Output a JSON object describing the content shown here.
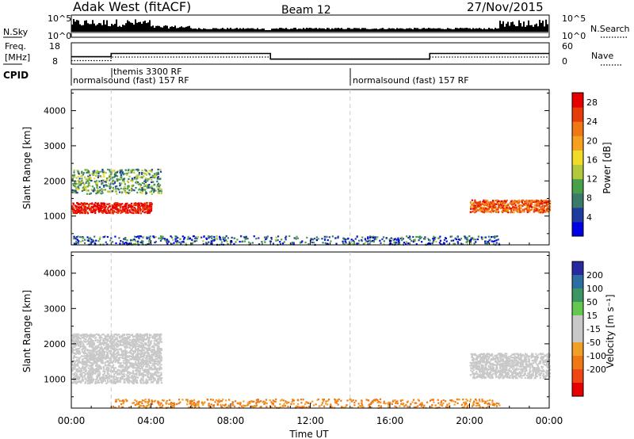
{
  "header": {
    "station": "Adak West (fitACF)",
    "beam": "Beam 12",
    "date": "27/Nov/2015"
  },
  "labels": {
    "nsky": "N.Sky",
    "nsearch": "N.Search",
    "freq_line1": "Freq.",
    "freq_line2": "[MHz]",
    "nave": "Nave",
    "cpid": "CPID",
    "slant_range": "Slant Range [km]",
    "time_axis": "Time UT",
    "power_label": "Power [dB]",
    "velocity_label": "Velocity [m s⁻¹]"
  },
  "noise_panel": {
    "left_ticks": [
      "10^5",
      "10^0"
    ],
    "right_ticks": [
      "10^5",
      "10^0"
    ]
  },
  "freq_panel": {
    "left_ticks": [
      "18",
      "8"
    ],
    "right_ticks": [
      "60",
      "0"
    ],
    "freq_segments": [
      {
        "start": 0.0,
        "end": 2.0,
        "value": 11.5
      },
      {
        "start": 2.0,
        "end": 10.0,
        "value": 13.0
      },
      {
        "start": 10.0,
        "end": 18.0,
        "value": 10.4
      },
      {
        "start": 18.0,
        "end": 24.0,
        "value": 13.0
      }
    ],
    "nave_segments": [
      {
        "start": 0.0,
        "end": 2.0,
        "value": 10
      },
      {
        "start": 2.0,
        "end": 10.0,
        "value": 20
      },
      {
        "start": 10.0,
        "end": 18.0,
        "value": 14
      },
      {
        "start": 18.0,
        "end": 24.0,
        "value": 20
      }
    ]
  },
  "cpid_panel": {
    "segments": [
      {
        "start": 0.0,
        "label": "normalsound (fast) 157 RF"
      },
      {
        "start": 2.0,
        "label": "themis 3300 RF"
      },
      {
        "start": 14.0,
        "label": "normalsound (fast) 157 RF"
      }
    ]
  },
  "colorbars": {
    "power": {
      "ticks": [
        "28",
        "24",
        "20",
        "16",
        "12",
        "8",
        "4"
      ],
      "colors": [
        "#0000e6",
        "#1e3ca0",
        "#3a7a6a",
        "#4aa04a",
        "#b4c83c",
        "#f0dc28",
        "#f5a01e",
        "#f07814",
        "#e63c0a",
        "#e60000"
      ]
    },
    "velocity": {
      "ticks": [
        "200",
        "100",
        "50",
        "15",
        "-15",
        "-50",
        "-100",
        "-200"
      ],
      "colors": [
        "#2828a0",
        "#2c6ea0",
        "#3c9664",
        "#64c850",
        "#c8c8c8",
        "#c8c8c8",
        "#f0a028",
        "#f07814",
        "#f04614",
        "#e60000"
      ]
    }
  },
  "chart_data": [
    {
      "type": "heatmap",
      "title": "Power",
      "ylabel": "Slant Range [km]",
      "xlabel": "",
      "x_unit": "hours UT",
      "xlim": [
        0,
        24
      ],
      "ylim": [
        180,
        4600
      ],
      "yticks": [
        1000,
        2000,
        3000,
        4000
      ],
      "colorbar_label": "Power [dB]",
      "colorbar_range": [
        0,
        30
      ],
      "features": [
        {
          "name": "evening_E_F_band",
          "t_start": 0.0,
          "t_end": 4.0,
          "range_center": 1250,
          "range_width": 300,
          "value": 28
        },
        {
          "name": "evening_upper_band",
          "t_start": 0.0,
          "t_end": 4.5,
          "range_center": 2000,
          "range_width": 700,
          "value": 10
        },
        {
          "name": "morning_band",
          "t_start": 20.0,
          "t_end": 24.0,
          "range_center": 1300,
          "range_width": 350,
          "value": 24
        },
        {
          "name": "near_range_clutter",
          "t_start": 0.0,
          "t_end": 21.5,
          "range_center": 330,
          "range_width": 250,
          "value": 6
        }
      ]
    },
    {
      "type": "heatmap",
      "title": "Velocity",
      "ylabel": "Slant Range [km]",
      "xlabel": "Time UT",
      "x_unit": "hours UT",
      "xlim": [
        0,
        24
      ],
      "ylim": [
        180,
        4600
      ],
      "yticks": [
        1000,
        2000,
        3000,
        4000
      ],
      "xticks": [
        "00:00",
        "04:00",
        "08:00",
        "12:00",
        "16:00",
        "20:00",
        "00:00"
      ],
      "colorbar_label": "Velocity [m s⁻¹]",
      "colorbar_range": [
        -200,
        200
      ],
      "features": [
        {
          "name": "evening_ground_scatter",
          "t_start": 0.0,
          "t_end": 4.5,
          "range_center": 1600,
          "range_width": 1400,
          "value": 0
        },
        {
          "name": "morning_ground_scatter",
          "t_start": 20.0,
          "t_end": 24.0,
          "range_center": 1400,
          "range_width": 700,
          "value": 0
        },
        {
          "name": "near_range_flow",
          "t_start": 2.0,
          "t_end": 21.5,
          "range_center": 330,
          "range_width": 250,
          "value": -60
        }
      ]
    }
  ]
}
